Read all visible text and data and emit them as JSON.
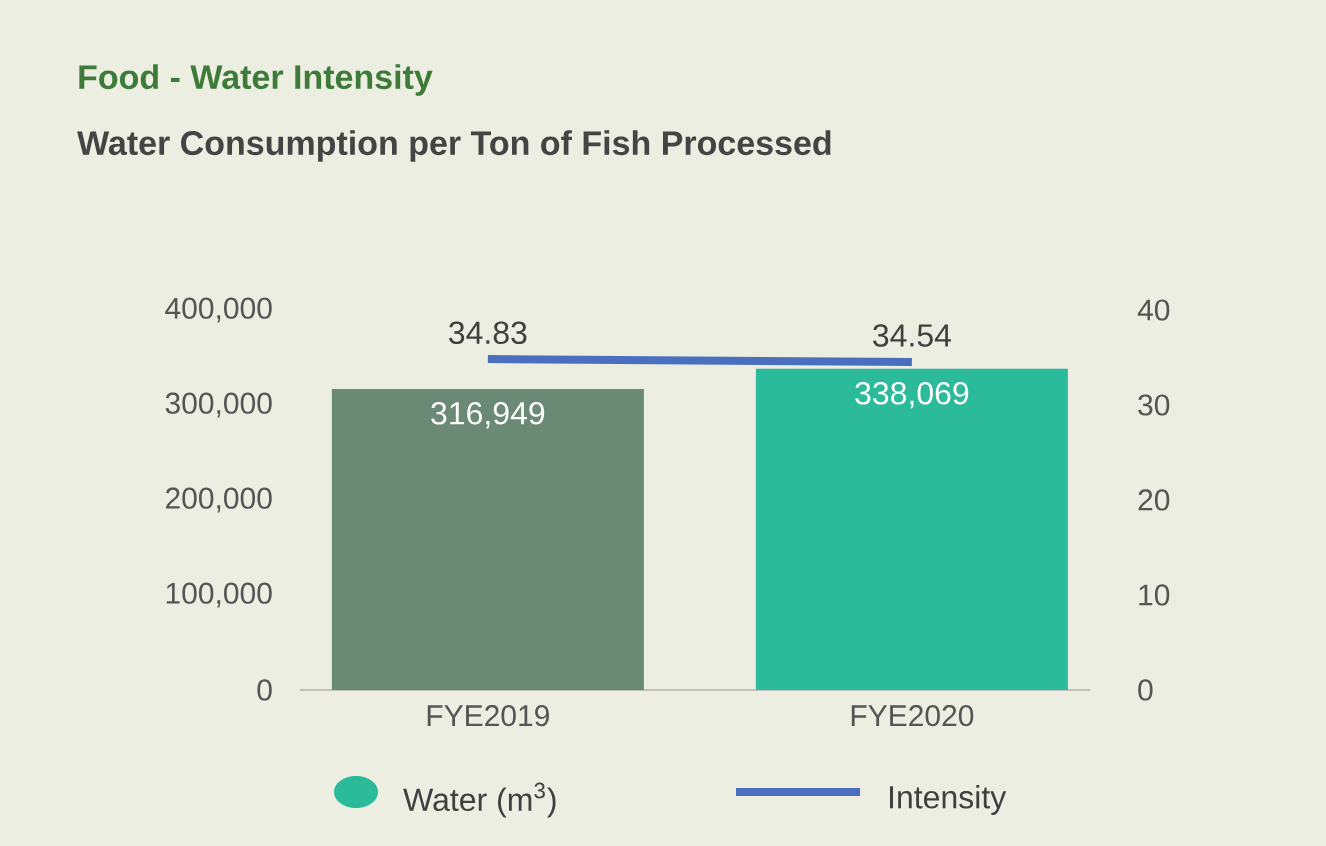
{
  "chart_data": {
    "type": "bar",
    "title": "Food - Water Intensity",
    "subtitle": "Water Consumption per Ton of Fish Processed",
    "categories": [
      "FYE2019",
      "FYE2020"
    ],
    "series": [
      {
        "name": "Water (m$^{3}$)",
        "color": "#6b8a76",
        "colors": [
          "#6b8a76",
          "#2bbb9b"
        ],
        "values": [
          316949,
          338069
        ],
        "value_labels": [
          "316,949",
          "338,069"
        ]
      },
      {
        "name": "Intensity",
        "type": "line",
        "axis": "y2",
        "color": "#4a6fbf",
        "values": [
          34.83,
          34.54
        ],
        "value_labels": [
          "34.83",
          "34.54"
        ]
      }
    ],
    "ylim": [
      0,
      400000
    ],
    "yticks": [
      {
        "value": 0,
        "label": "0"
      },
      {
        "value": 100000,
        "label": "100,000"
      },
      {
        "value": 200000,
        "label": "200,000"
      },
      {
        "value": 300000,
        "label": "300,000"
      },
      {
        "value": 400000,
        "label": "400,000"
      }
    ],
    "y2lim": [
      0,
      40
    ],
    "y2ticks": [
      0,
      10,
      20,
      30,
      40
    ],
    "legend": "bottom"
  }
}
